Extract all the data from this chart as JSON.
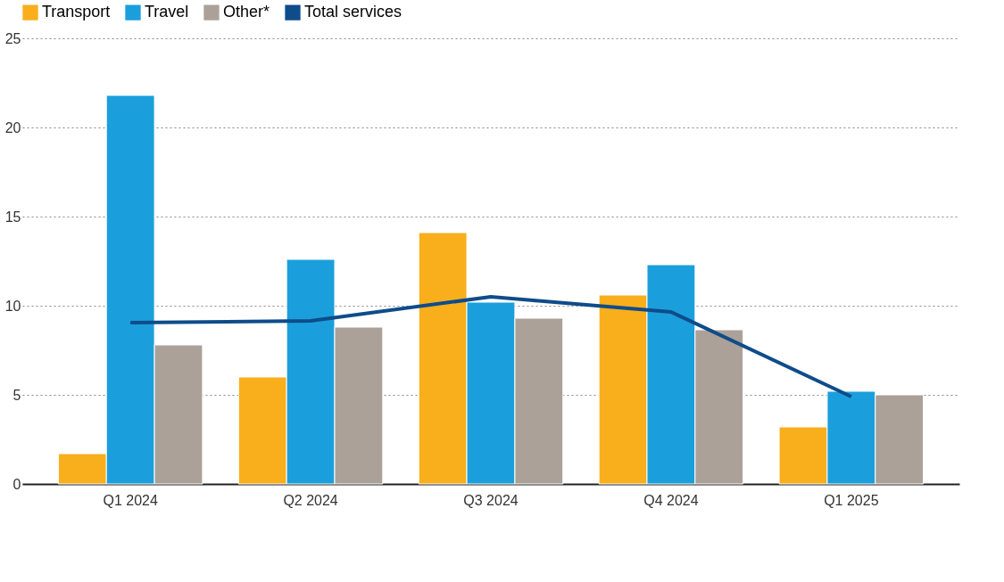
{
  "chart_data": {
    "type": "bar",
    "categories": [
      "Q1 2024",
      "Q2 2024",
      "Q3 2024",
      "Q4 2024",
      "Q1 2025"
    ],
    "series": [
      {
        "name": "Transport",
        "color": "#f9ae1c",
        "values": [
          1.7,
          6.0,
          14.1,
          10.6,
          3.2
        ]
      },
      {
        "name": "Travel",
        "color": "#1a9fdc",
        "values": [
          21.8,
          12.6,
          10.2,
          12.3,
          5.2
        ]
      },
      {
        "name": "Other*",
        "color": "#aca198",
        "values": [
          7.8,
          8.8,
          9.3,
          8.65,
          5.0
        ]
      },
      {
        "name": "Total services",
        "color": "#0e4c8a",
        "type": "line",
        "values": [
          9.05,
          9.15,
          10.5,
          9.65,
          4.9
        ]
      }
    ],
    "ylim": [
      0,
      25
    ],
    "yticks": [
      0,
      5,
      10,
      15,
      20,
      25
    ],
    "grid": "y",
    "legend": "top left",
    "marker": "none",
    "line_style": "solid"
  }
}
